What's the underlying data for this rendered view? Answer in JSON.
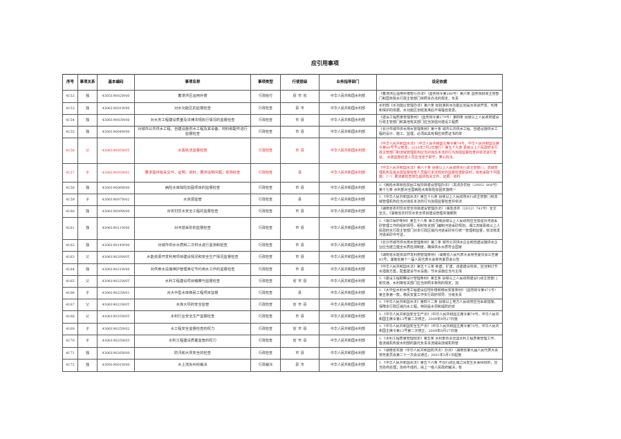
{
  "title": "应引用事项",
  "headers": [
    "序号",
    "事项关系",
    "基本编码",
    "事项名称",
    "事项类型",
    "行使层级",
    "业务指导部门",
    "设定依据"
  ],
  "highlight_color": "#e8262b",
  "rows": [
    {
      "no": "4152",
      "rel": "独",
      "code": "430519002W00",
      "name": "蓄滞洪区运用补偿",
      "type": "行政给付",
      "level": "县`市`省",
      "dept": "中华人民共和国水利部",
      "basis": "《蓄滞洪区运用补偿暂行办法》（国务院令第286号）第六条 国务院财政主管部门和国务院水行政主管部门依照本办法的规定，负责",
      "red": false
    },
    {
      "no": "4153",
      "rel": "独",
      "code": "430619001W00",
      "name": "对水功能区的监督检查",
      "type": "行政检查",
      "level": "县`市",
      "dept": "中华人民共和国水利部",
      "basis": "水利部《水功能区管理办法》第六条 经批准的水功能区划是水资源开发、利用和保护的依据。水功能区划经批准后不得擅自变更。",
      "red": false
    },
    {
      "no": "4154",
      "rel": "独",
      "code": "430619003W00",
      "name": "对水务工程建设质量及法律法规执行情况的监督检查",
      "type": "行政检查",
      "level": "市`县",
      "dept": "中华人民共和国水利部",
      "basis": "《建设工程质量管理条例》（国务院令第279号）第四条 县级以上人民政府建设行政主管部门和其他有关部门应当加强对建设工程质",
      "red": false
    },
    {
      "no": "4155",
      "rel": "独",
      "code": "430619004W00",
      "name": "对城市公共供水工程、自建设施供水工程及其设备、材料和配件进行监督检查",
      "type": "行政检查",
      "level": "市`县",
      "dept": "中华人民共和国水利部",
      "basis": "《长沙市城市供水用水管理条例》第十条 城市公共供水工程、自建设施供水工程的设计、施工、监理，必须由具有相应资质证书的单",
      "red": false
    },
    {
      "no": "4156",
      "rel": "父",
      "code": "430619005W0T",
      "name": "水政执法监督检查",
      "type": "行政检查",
      "level": "市`县",
      "dept": "中华人民共和国水利部",
      "basis": "《中华人民共和国水法》（中华人民共和国主席令第74号，中华人民共和国主席令第48号予以修改，2016年7月2日施行）第五十九条 县级以上人民政府水行政主管部门和流域管理机构应当对违反本法的行为加强监督检查并依法进行查处。 水政监督检查人员应当忠于职守，秉公执法。",
      "red": true
    },
    {
      "no": "4157",
      "rel": "子",
      "code": "430619005W01",
      "name": "要求提供有关文件、证明、资料；要求说明问题；现场检查",
      "type": "行政检查",
      "level": "县",
      "dept": "中华人民共和国水利部",
      "basis": "《中华人民共和国水法》第六十条 县级以上人民政府水行政主管部门、流域管理机构及其水政监督检查人员履行本法规定的监督检查职责时，有权采取下列措施：（一）要求被检查单位提供有关文件、证照、资料",
      "red": true
    },
    {
      "no": "4158",
      "rel": "独",
      "code": "430619006W00",
      "name": "病险水库除险加固项目的监督检查",
      "type": "行政检查",
      "level": "市`县",
      "dept": "中华人民共和国水利部",
      "basis": "1.《病险水库除险加固工程项目建设管理办法》（发改办农经〔2005〕806号）第十七条 水利部对全国病险水库除险加固实施统一",
      "red": false
    },
    {
      "no": "4159",
      "rel": "子",
      "code": "430619007W02",
      "name": "水资源监管",
      "type": "行政检查",
      "level": "县",
      "dept": "中华人民共和国水利部",
      "basis": "1.《中华人民共和国水法》第五十九条 县级以上人民政府水行政主管部门和流域管理机构应当对违反本法的行为加强监督检查并依法",
      "red": false
    },
    {
      "no": "4160",
      "rel": "独",
      "code": "430619009W00",
      "name": "对农村饮水安全工程的监督检查",
      "type": "行政检查",
      "level": "市`县",
      "dept": "中华人民共和国水利部",
      "basis": "《湖南省农村饮水安全项目建设管理办法》（湘发改农〔2012〕741号）全文 全文。《湖南省农村饮水安全项目建设管理实施细则",
      "red": false
    },
    {
      "no": "4161",
      "rel": "独",
      "code": "430619011W00",
      "name": "对河道采砂的监督检查",
      "type": "行政检查",
      "level": "市`县",
      "dept": "中华人民共和国水利部",
      "basis": "1.《湘江保护条例》第五十八条 湘江流域县级以上人民政府应当加强对河道采砂管理工作的组织领导，组织有关部门编制河道采砂规划。湘江流域县级以上人民政府水行政主管部门对本行政区域内河道采砂实行统一管理和监督，依法核发河道采砂许可证，",
      "red": false
    },
    {
      "no": "4162",
      "rel": "独",
      "code": "430619014W00",
      "name": "对城市供水水质和二次供水进行监测和检查",
      "type": "行政检查",
      "level": "市`县",
      "dept": "中华人民共和国水利部",
      "basis": "《长沙市城市供水用水管理条例》第二条 城市公共供水企业和自建设施供水企业应当建立健全水质检测制度，确保供水水质符合国家",
      "red": false
    },
    {
      "no": "4163",
      "rel": "父",
      "code": "430619020W0T",
      "name": "水能资源开发利用项目建设情况和安全生产情况监督检查",
      "type": "行政检查",
      "level": "市`县",
      "dept": "中华人民共和国水利部",
      "basis": "《湖南省水能资源开发利用管理条例》（湖南省人民代表大会常务委员会公告第83号，湖南省第十一届人民代表大会常务委员会公告",
      "red": false
    },
    {
      "no": "4164",
      "rel": "独",
      "code": "430619021W00",
      "name": "对供用水设施维护管理单位节约用水工作的监督检查",
      "type": "行政检查",
      "level": "市`县",
      "dept": "中华人民共和国水利部",
      "basis": "《中华人民共和国水法》第五十三条 新建、扩建、改建建设项目，应当制订节水措施方案，配套建设节水设施。节水设施应当与主体",
      "red": false
    },
    {
      "no": "4165",
      "rel": "父",
      "code": "430619022W0T",
      "name": "水利工程建设项目稽察与监督检查",
      "type": "行政检查",
      "level": "省`市`县",
      "dept": "中华人民共和国水利部",
      "basis": "1.《建设工程勘察设计管理条例》第五条 县级以上人民政府建设行政主管部门和交通、水利等有关部门应当依照本条例的规定，加",
      "red": false
    },
    {
      "no": "4166",
      "rel": "子",
      "code": "430619022W01",
      "name": "对大中型水库移民工程项目监督",
      "type": "行政检查",
      "level": "县",
      "dept": "中华人民共和国水利部",
      "basis": "1.《大中型水利水电工程建设征地补偿和移民安置条例》（国务院令第471号）第五条第一款，移民安置工作实行政府领导、分级负责",
      "red": false
    },
    {
      "no": "4167",
      "rel": "父",
      "code": "430619023W0T",
      "name": "水库大坝的安全监管",
      "type": "行政检查",
      "level": "省`市`县",
      "dept": "中华人民共和国水利部",
      "basis": "1.《中华人民共和国水法》第四十二条 县级以上地方人民政府应当采取措施，保障本行政区域内水工程，特别是水坝和堤防的安",
      "red": false
    },
    {
      "no": "4168",
      "rel": "父",
      "code": "430619025W0T",
      "name": "水利行业安全生产监督检查",
      "type": "行政检查",
      "level": "市`县",
      "dept": "中华人民共和国水利部",
      "basis": "1.《中华人民共和国安全生产法》（中华人民共和国主席令第70号，中华人民共和国主席令第13号第二次修正，2009年8月27日施",
      "red": false
    },
    {
      "no": "4169",
      "rel": "子",
      "code": "430619025W02",
      "name": "水工程安全监督检查的权力",
      "type": "行政检查",
      "level": "省`市`县",
      "dept": "中华人民共和国水利部",
      "basis": "1.《中华人民共和国安全生产法》（中华人民共和国主席令第70号，中华人民共和国主席令第13号第二次修正，2009年8月27日施",
      "red": false
    },
    {
      "no": "4170",
      "rel": "子",
      "code": "430619025W03",
      "name": "水利工程建设质量监管的权力",
      "type": "行政检查",
      "level": "省`市`县",
      "dept": "中华人民共和国水利部",
      "basis": "1.《水利工程质量管理规定》第五条 水利部负责全国水利工程质量管理工作。各流域机构受水利部的委托负责本流域由流域机构管",
      "red": false
    },
    {
      "no": "4171",
      "rel": "独",
      "code": "430619026W00",
      "name": "防汛和大坝安全的检查",
      "type": "行政检查",
      "level": "市`县",
      "dept": "中华人民共和国水利部",
      "basis": "1.《湖南省实施〈中华人民共和国防洪法〉办法》（湖南省第九届人民代表大会常务委员会第二十一次会议通过，2001年5月1日起施",
      "red": false
    },
    {
      "no": "4172",
      "rel": "独",
      "code": "430919001W00",
      "name": "水土流失纠纷裁决",
      "type": "行政裁决",
      "level": "县`市",
      "dept": "中华人民共和国水利部",
      "basis": "1.《中华人民共和国水法》第五十六条 不同行政区域之间发生水事纠纷的，应当协商处理；协商不成的，由上一级人民政府裁决，有",
      "red": false
    }
  ]
}
